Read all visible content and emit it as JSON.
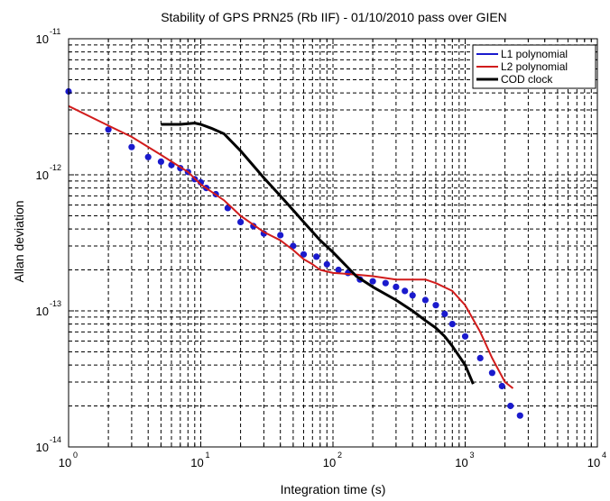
{
  "chart_data": {
    "type": "line",
    "title": "Stability of GPS PRN25 (Rb IIF) - 01/10/2010 pass over GIEN",
    "xlabel": "Integration time  (s)",
    "ylabel": "Allan deviation",
    "x_scale": "log",
    "y_scale": "log",
    "xlim": [
      1,
      10000
    ],
    "ylim": [
      1e-14,
      1e-11
    ],
    "grid": true,
    "legend_position": "top-right",
    "x_ticks": [
      {
        "base": "10",
        "exp": "0",
        "value": 1
      },
      {
        "base": "10",
        "exp": "1",
        "value": 10
      },
      {
        "base": "10",
        "exp": "2",
        "value": 100
      },
      {
        "base": "10",
        "exp": "3",
        "value": 1000
      },
      {
        "base": "10",
        "exp": "4",
        "value": 10000
      }
    ],
    "y_ticks": [
      {
        "base": "10",
        "exp": "-14",
        "value": 1e-14
      },
      {
        "base": "10",
        "exp": "-13",
        "value": 1e-13
      },
      {
        "base": "10",
        "exp": "-12",
        "value": 1e-12
      },
      {
        "base": "10",
        "exp": "-11",
        "value": 1e-11
      }
    ],
    "series": [
      {
        "name": "L1 polynomial",
        "color": "#1a1acd",
        "style": "markers",
        "points": [
          [
            1,
            4.1e-12
          ],
          [
            2,
            2.15e-12
          ],
          [
            3,
            1.6e-12
          ],
          [
            4,
            1.35e-12
          ],
          [
            5,
            1.25e-12
          ],
          [
            6,
            1.18e-12
          ],
          [
            7,
            1.12e-12
          ],
          [
            8,
            1.05e-12
          ],
          [
            9,
            9.3e-13
          ],
          [
            10,
            8.8e-13
          ],
          [
            11,
            8e-13
          ],
          [
            13,
            7.2e-13
          ],
          [
            16,
            5.7e-13
          ],
          [
            20,
            4.5e-13
          ],
          [
            25,
            4.2e-13
          ],
          [
            30,
            3.7e-13
          ],
          [
            40,
            3.6e-13
          ],
          [
            50,
            3e-13
          ],
          [
            60,
            2.6e-13
          ],
          [
            75,
            2.5e-13
          ],
          [
            90,
            2.2e-13
          ],
          [
            110,
            2e-13
          ],
          [
            130,
            1.9e-13
          ],
          [
            160,
            1.7e-13
          ],
          [
            200,
            1.65e-13
          ],
          [
            250,
            1.6e-13
          ],
          [
            300,
            1.5e-13
          ],
          [
            350,
            1.4e-13
          ],
          [
            400,
            1.3e-13
          ],
          [
            500,
            1.2e-13
          ],
          [
            600,
            1.1e-13
          ],
          [
            700,
            9.5e-14
          ],
          [
            800,
            8e-14
          ],
          [
            1000,
            6.5e-14
          ],
          [
            1300,
            4.5e-14
          ],
          [
            1600,
            3.5e-14
          ],
          [
            1900,
            2.8e-14
          ],
          [
            2200,
            2e-14
          ],
          [
            2600,
            1.7e-14
          ]
        ]
      },
      {
        "name": "L2 polynomial",
        "color": "#d11c1c",
        "style": "line",
        "points": [
          [
            1,
            3.2e-12
          ],
          [
            2,
            2.3e-12
          ],
          [
            3,
            1.9e-12
          ],
          [
            5,
            1.4e-12
          ],
          [
            8,
            1.05e-12
          ],
          [
            10,
            8.5e-13
          ],
          [
            15,
            6.5e-13
          ],
          [
            20,
            5e-13
          ],
          [
            30,
            3.8e-13
          ],
          [
            40,
            3.3e-13
          ],
          [
            50,
            2.8e-13
          ],
          [
            60,
            2.4e-13
          ],
          [
            70,
            2.2e-13
          ],
          [
            80,
            2e-13
          ],
          [
            100,
            1.9e-13
          ],
          [
            150,
            1.85e-13
          ],
          [
            200,
            1.8e-13
          ],
          [
            300,
            1.7e-13
          ],
          [
            500,
            1.7e-13
          ],
          [
            600,
            1.6e-13
          ],
          [
            800,
            1.4e-13
          ],
          [
            1000,
            1.1e-13
          ],
          [
            1300,
            7e-14
          ],
          [
            1600,
            4.5e-14
          ],
          [
            2000,
            3e-14
          ],
          [
            2300,
            2.7e-14
          ]
        ]
      },
      {
        "name": "COD clock",
        "color": "#000000",
        "style": "line",
        "points": [
          [
            5,
            2.35e-12
          ],
          [
            7,
            2.35e-12
          ],
          [
            9,
            2.4e-12
          ],
          [
            10,
            2.35e-12
          ],
          [
            12,
            2.2e-12
          ],
          [
            15,
            2e-12
          ],
          [
            20,
            1.5e-12
          ],
          [
            30,
            9.5e-13
          ],
          [
            40,
            7e-13
          ],
          [
            50,
            5.5e-13
          ],
          [
            60,
            4.5e-13
          ],
          [
            80,
            3.3e-13
          ],
          [
            100,
            2.7e-13
          ],
          [
            150,
            1.8e-13
          ],
          [
            200,
            1.5e-13
          ],
          [
            300,
            1.2e-13
          ],
          [
            400,
            1e-13
          ],
          [
            500,
            8.5e-14
          ],
          [
            600,
            7.5e-14
          ],
          [
            700,
            6.5e-14
          ],
          [
            800,
            5.5e-14
          ],
          [
            1000,
            4e-14
          ],
          [
            1150,
            2.9e-14
          ]
        ]
      }
    ]
  }
}
